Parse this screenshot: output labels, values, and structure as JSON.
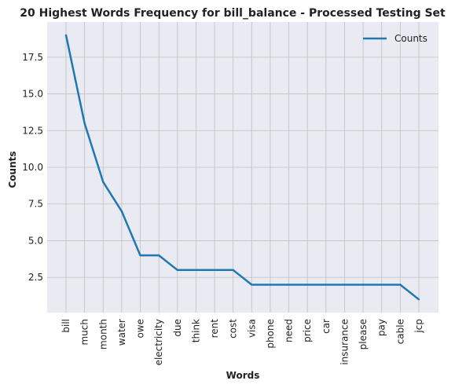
{
  "chart_data": {
    "type": "line",
    "title": "20 Highest Words Frequency for bill_balance - Processed Testing Set",
    "xlabel": "Words",
    "ylabel": "Counts",
    "categories": [
      "bill",
      "much",
      "month",
      "water",
      "owe",
      "electricity",
      "due",
      "think",
      "rent",
      "cost",
      "visa",
      "phone",
      "need",
      "price",
      "car",
      "insurance",
      "please",
      "pay",
      "cable",
      "jcp"
    ],
    "series": [
      {
        "name": "Counts",
        "values": [
          19,
          13,
          9,
          7,
          4,
          4,
          3,
          3,
          3,
          3,
          2,
          2,
          2,
          2,
          2,
          2,
          2,
          2,
          2,
          1
        ],
        "color": "#1f77b4"
      }
    ],
    "ylim": [
      0.1,
      19.9
    ],
    "yticks": [
      2.5,
      5.0,
      7.5,
      10.0,
      12.5,
      15.0,
      17.5
    ],
    "ytick_labels": [
      "2.5",
      "5.0",
      "7.5",
      "10.0",
      "12.5",
      "15.0",
      "17.5"
    ],
    "grid": true,
    "legend_position": "top-right",
    "colors": {
      "plot_background": "#eaeaf2",
      "grid": "#c0c0c0",
      "line": "#1f77b4"
    }
  }
}
